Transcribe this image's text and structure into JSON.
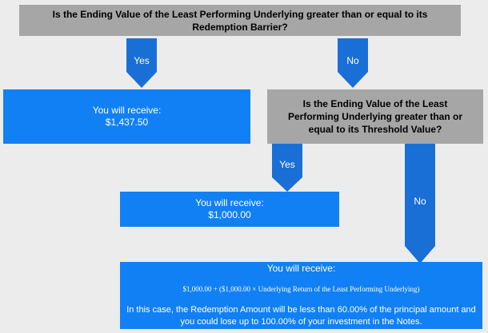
{
  "question1": "Is the Ending Value of the Least Performing Underlying greater than or equal to its Redemption Barrier?",
  "question2": "Is the Ending Value of the Least Performing Underlying greater than or equal to its Threshold Value?",
  "yes_label": "Yes",
  "no_label": "No",
  "outcome1": {
    "heading": "You will receive:",
    "amount": "$1,437.50"
  },
  "outcome2": {
    "heading": "You will receive:",
    "amount": "$1,000.00"
  },
  "outcome3": {
    "heading": "You will receive:",
    "formula": "$1,000.00 + ($1,000.00 × Underlying Return of the Least Performing Underlying)",
    "note": "In this case, the Redemption Amount will be less than 60.00% of the principal amount and you could lose up to 100.00% of your investment in the Notes."
  },
  "colors": {
    "question_box": "#a6a6a6",
    "outcome_box": "#1180f5",
    "arrow": "#1a6fd6"
  }
}
